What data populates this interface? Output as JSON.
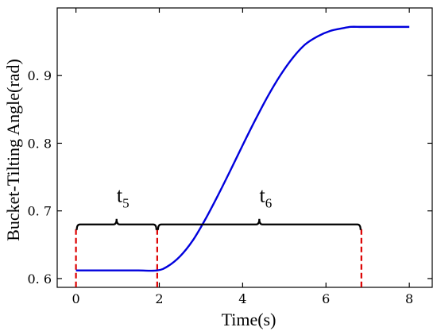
{
  "chart_data": {
    "type": "line",
    "xlabel": "Time(s)",
    "ylabel": "Bucket-Tilting Angle(rad)",
    "xlim": [
      -0.45,
      8.55
    ],
    "ylim": [
      0.587,
      1.0
    ],
    "x_ticks": [
      0,
      2,
      4,
      6,
      8
    ],
    "x_tick_labels": [
      "0",
      "2",
      "4",
      "6",
      "8"
    ],
    "y_ticks": [
      0.6,
      0.7,
      0.8,
      0.9
    ],
    "y_tick_labels": [
      "0. 6",
      "0. 7",
      "0. 8",
      "0. 9"
    ],
    "grid": false,
    "series": [
      {
        "color": "#0000dd",
        "x": [
          0,
          0.5,
          1.0,
          1.5,
          1.95,
          2.2,
          2.5,
          2.8,
          3.1,
          3.4,
          3.7,
          4.0,
          4.3,
          4.6,
          4.9,
          5.2,
          5.5,
          5.8,
          6.1,
          6.4,
          6.6,
          6.8,
          6.9,
          7.2,
          7.5,
          8.0
        ],
        "y": [
          0.612,
          0.612,
          0.612,
          0.612,
          0.612,
          0.618,
          0.633,
          0.656,
          0.687,
          0.722,
          0.759,
          0.797,
          0.834,
          0.869,
          0.9,
          0.926,
          0.946,
          0.958,
          0.966,
          0.97,
          0.972,
          0.972,
          0.972,
          0.972,
          0.972,
          0.972
        ]
      }
    ],
    "annotations": {
      "color": "#000000",
      "marker_color": "#dd0000",
      "brace_y": 0.68,
      "dashed_markers_x": [
        0,
        1.95,
        6.85
      ],
      "intervals": [
        {
          "start": 0,
          "end": 1.95,
          "label": "t",
          "subscript": "5"
        },
        {
          "start": 1.95,
          "end": 6.85,
          "label": "t",
          "subscript": "6"
        }
      ]
    }
  }
}
